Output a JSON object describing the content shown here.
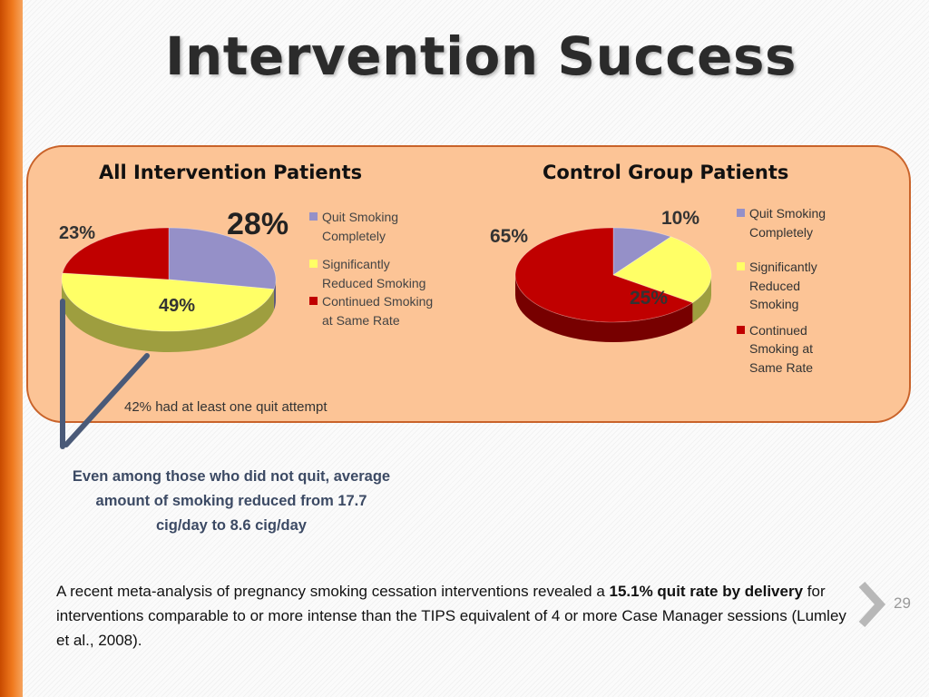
{
  "slide": {
    "title": "Intervention Success",
    "page_number": "29"
  },
  "callout": {
    "line1": "Even among those who did not quit, average",
    "line2": "amount of smoking reduced from 17.7",
    "line3": "cig/day to 8.6 cig/day"
  },
  "body": {
    "text_before": "A recent meta-analysis of pregnancy smoking cessation interventions revealed a ",
    "text_bold": "15.1% quit rate by delivery",
    "text_after": " for interventions comparable to or more intense than the TIPS equivalent of 4 or more Case Manager sessions (Lumley et al., 2008)."
  },
  "colors": {
    "quit": "#9590c8",
    "reduced": "#ffff66",
    "continued": "#c00000",
    "panel": "#fcc496",
    "panel_border": "#c9632a"
  },
  "chart_data": [
    {
      "type": "pie",
      "title": "All Intervention Patients",
      "categories": [
        "Quit Smoking Completely",
        "Significantly Reduced Smoking",
        "Continued Smoking at Same Rate"
      ],
      "values": [
        28,
        49,
        23
      ],
      "labels": [
        "28%",
        "49%",
        "23%"
      ],
      "footnote": "42% had at least one quit attempt",
      "legend_position": "right"
    },
    {
      "type": "pie",
      "title": "Control Group Patients",
      "categories": [
        "Quit Smoking Completely",
        "Significantly Reduced Smoking",
        "Continued Smoking at Same Rate"
      ],
      "values": [
        10,
        25,
        65
      ],
      "labels": [
        "10%",
        "25%",
        "65%"
      ],
      "legend_position": "right"
    }
  ]
}
